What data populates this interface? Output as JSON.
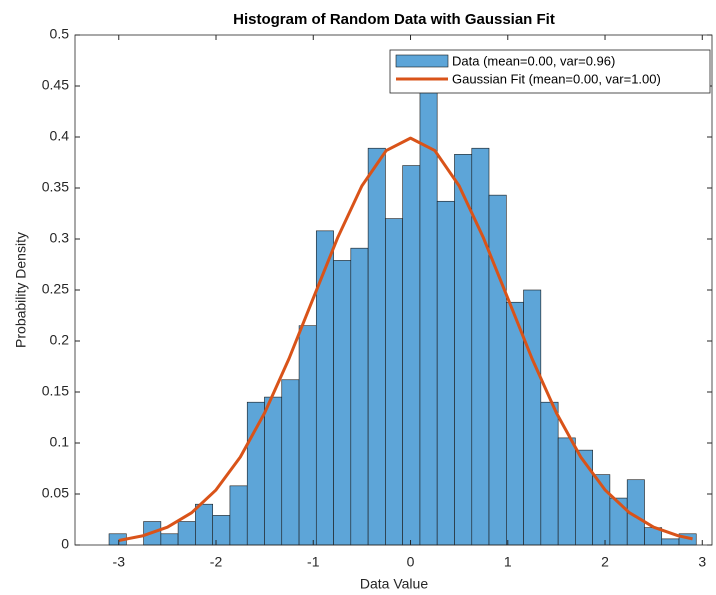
{
  "chart_data": {
    "type": "histogram",
    "title": "Histogram of Random Data with Gaussian Fit",
    "xlabel": "Data Value",
    "ylabel": "Probability Density",
    "xlim": [
      -3.45,
      3.1
    ],
    "ylim": [
      0,
      0.5
    ],
    "xticks": [
      -3,
      -2,
      -1,
      0,
      1,
      2,
      3
    ],
    "yticks": [
      0,
      0.05,
      0.1,
      0.15,
      0.2,
      0.25,
      0.3,
      0.35,
      0.4,
      0.45,
      0.5
    ],
    "bins": [
      -3.1,
      -2.922,
      -2.745,
      -2.567,
      -2.39,
      -2.212,
      -2.034,
      -1.857,
      -1.679,
      -1.502,
      -1.324,
      -1.146,
      -0.969,
      -0.791,
      -0.614,
      -0.436,
      -0.258,
      -0.081,
      0.097,
      0.274,
      0.452,
      0.63,
      0.807,
      0.985,
      1.162,
      1.34,
      1.518,
      1.695,
      1.873,
      2.05,
      2.228,
      2.406,
      2.583,
      2.761,
      2.938
    ],
    "series": [
      {
        "name": "Data (mean=0.00, var=0.96)",
        "color": "#5DA5D8",
        "values": [
          0.011,
          0,
          0.023,
          0.011,
          0.023,
          0.04,
          0.029,
          0.058,
          0.14,
          0.145,
          0.162,
          0.215,
          0.308,
          0.279,
          0.291,
          0.389,
          0.32,
          0.372,
          0.447,
          0.337,
          0.383,
          0.389,
          0.343,
          0.238,
          0.25,
          0.14,
          0.105,
          0.093,
          0.069,
          0.046,
          0.064,
          0.017,
          0.006,
          0.011
        ]
      },
      {
        "name": "Gaussian Fit (mean=0.00, var=1.00)",
        "color": "#D95319",
        "x": [
          -3,
          -2.75,
          -2.5,
          -2.25,
          -2,
          -1.75,
          -1.5,
          -1.25,
          -1,
          -0.75,
          -0.5,
          -0.25,
          0,
          0.25,
          0.5,
          0.75,
          1,
          1.25,
          1.5,
          1.75,
          2,
          2.25,
          2.5,
          2.75,
          2.9
        ],
        "values": [
          0.0044,
          0.0091,
          0.0175,
          0.0317,
          0.054,
          0.0863,
          0.1295,
          0.1826,
          0.242,
          0.3011,
          0.3521,
          0.3867,
          0.3989,
          0.3867,
          0.3521,
          0.3011,
          0.242,
          0.1826,
          0.1295,
          0.0863,
          0.054,
          0.0317,
          0.0175,
          0.0091,
          0.006
        ]
      }
    ]
  }
}
